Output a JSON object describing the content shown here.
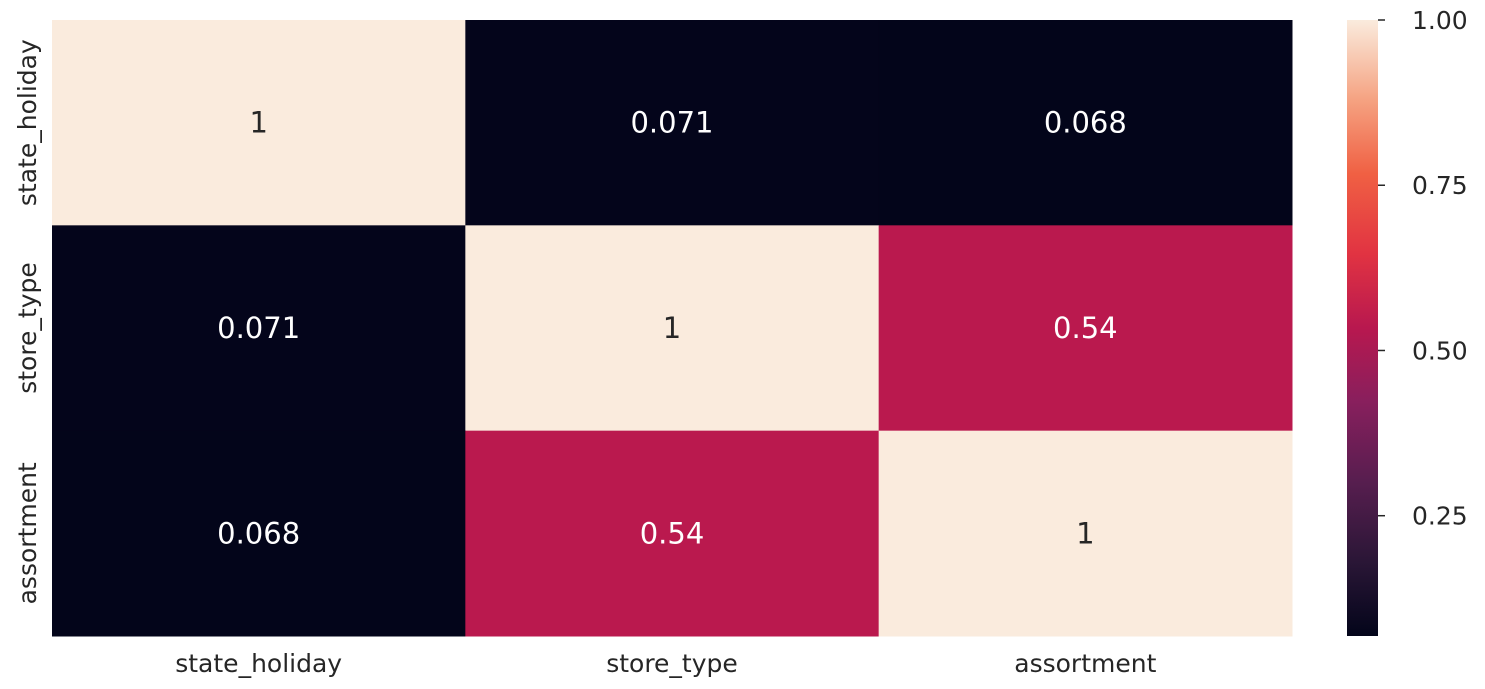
{
  "chart_data": {
    "type": "heatmap",
    "title": "",
    "xlabel": "",
    "ylabel": "",
    "x_categories": [
      "state_holiday",
      "store_type",
      "assortment"
    ],
    "y_categories": [
      "state_holiday",
      "store_type",
      "assortment"
    ],
    "values": [
      [
        1,
        0.071,
        0.068
      ],
      [
        0.071,
        1,
        0.54
      ],
      [
        0.068,
        0.54,
        1
      ]
    ],
    "annotations": [
      [
        "1",
        "0.071",
        "0.068"
      ],
      [
        "0.071",
        "1",
        "0.54"
      ],
      [
        "0.068",
        "0.54",
        "1"
      ]
    ],
    "colorbar": {
      "colormap": "rocket",
      "min": 0.068,
      "max": 1.0,
      "ticks": [
        0.25,
        0.5,
        0.75,
        1.0
      ],
      "tick_labels": [
        "0.25",
        "0.50",
        "0.75",
        "1.00"
      ]
    },
    "grid": false
  }
}
